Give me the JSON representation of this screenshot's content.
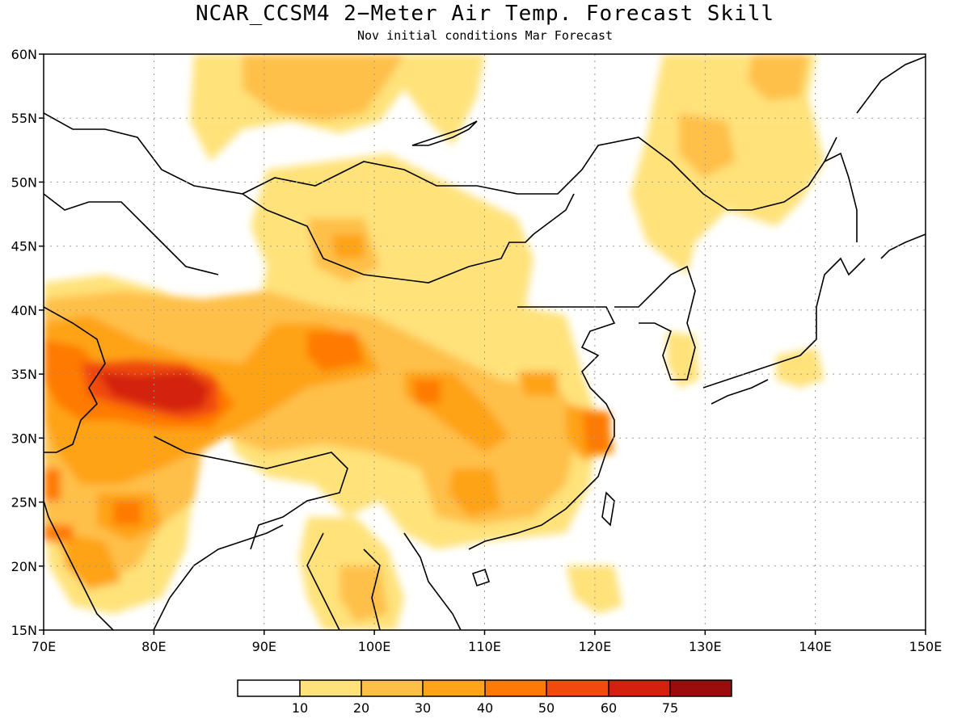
{
  "title": "NCAR_CCSM4 2−Meter Air Temp. Forecast Skill",
  "subtitle": "Nov initial conditions  Mar Forecast",
  "map": {
    "lon_range": [
      70,
      150
    ],
    "lat_range": [
      15,
      60
    ],
    "lat_ticks": [
      "15N",
      "20N",
      "25N",
      "30N",
      "35N",
      "40N",
      "45N",
      "50N",
      "55N",
      "60N"
    ],
    "lon_ticks": [
      "70E",
      "80E",
      "90E",
      "100E",
      "110E",
      "120E",
      "130E",
      "140E",
      "150E"
    ],
    "gridlines": true
  },
  "colorbar": {
    "labels": [
      "10",
      "20",
      "30",
      "40",
      "50",
      "60",
      "75"
    ],
    "colors": [
      "#ffffff",
      "#ffe27a",
      "#ffc048",
      "#ffa319",
      "#ff7a05",
      "#f04a0c",
      "#d3200f",
      "#9b0d0d"
    ]
  }
}
